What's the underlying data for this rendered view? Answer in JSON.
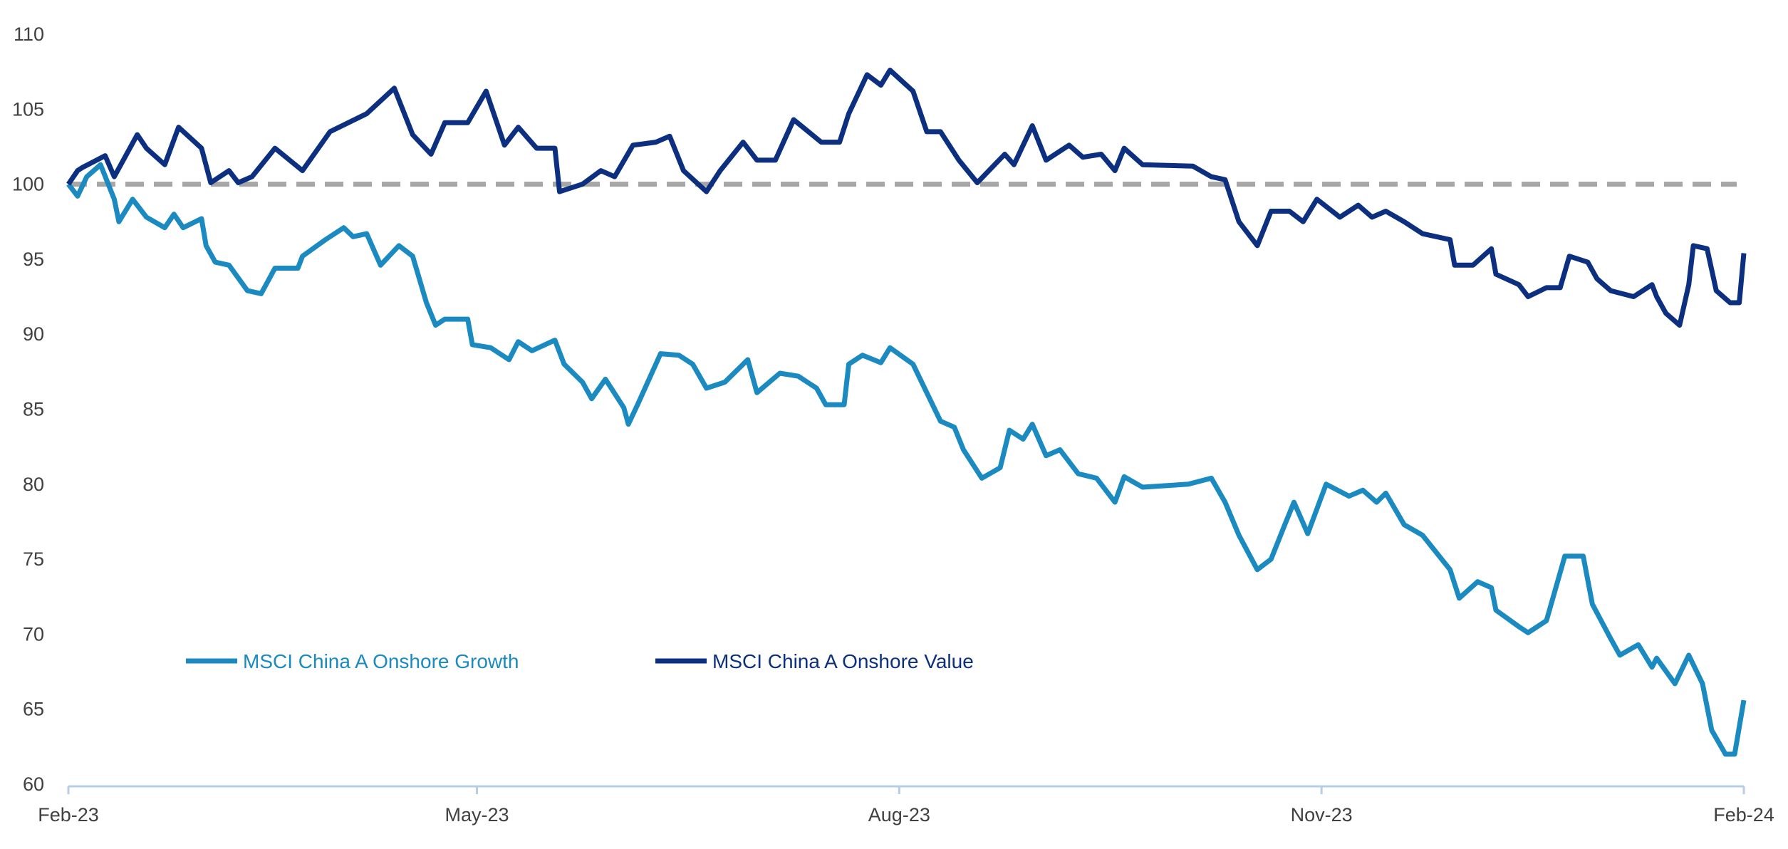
{
  "chart_data": {
    "type": "line",
    "title": "",
    "xlabel": "",
    "ylabel": "",
    "ylim": [
      60,
      110
    ],
    "xlim": [
      "2023-02-01",
      "2024-02-01"
    ],
    "yticks": [
      "60",
      "65",
      "70",
      "75",
      "80",
      "85",
      "90",
      "95",
      "100",
      "105",
      "110"
    ],
    "xticks": [
      {
        "date": "2023-02-01",
        "label": "Feb-23"
      },
      {
        "date": "2023-05-01",
        "label": "May-23"
      },
      {
        "date": "2023-08-01",
        "label": "Aug-23"
      },
      {
        "date": "2023-11-01",
        "label": "Nov-23"
      },
      {
        "date": "2024-02-01",
        "label": "Feb-24"
      }
    ],
    "grid": false,
    "legend_placement": "bottom-left",
    "reference_line": {
      "y": 100,
      "style": "dashed",
      "color": "#a6a6a6"
    },
    "series": [
      {
        "name": "MSCI China A Onshore Growth",
        "color": "#1a8ac0",
        "points": [
          [
            "2023-02-01",
            100.0
          ],
          [
            "2023-02-03",
            99.2
          ],
          [
            "2023-02-05",
            100.5
          ],
          [
            "2023-02-08",
            101.3
          ],
          [
            "2023-02-11",
            99.0
          ],
          [
            "2023-02-12",
            97.5
          ],
          [
            "2023-02-15",
            99.0
          ],
          [
            "2023-02-18",
            97.8
          ],
          [
            "2023-02-22",
            97.1
          ],
          [
            "2023-02-24",
            98.0
          ],
          [
            "2023-02-26",
            97.1
          ],
          [
            "2023-03-02",
            97.7
          ],
          [
            "2023-03-03",
            95.9
          ],
          [
            "2023-03-05",
            94.8
          ],
          [
            "2023-03-08",
            94.6
          ],
          [
            "2023-03-12",
            92.9
          ],
          [
            "2023-03-15",
            92.7
          ],
          [
            "2023-03-18",
            94.4
          ],
          [
            "2023-03-23",
            94.4
          ],
          [
            "2023-03-24",
            95.2
          ],
          [
            "2023-03-29",
            96.3
          ],
          [
            "2023-04-02",
            97.1
          ],
          [
            "2023-04-04",
            96.5
          ],
          [
            "2023-04-07",
            96.7
          ],
          [
            "2023-04-10",
            94.6
          ],
          [
            "2023-04-14",
            95.9
          ],
          [
            "2023-04-17",
            95.2
          ],
          [
            "2023-04-20",
            92.1
          ],
          [
            "2023-04-22",
            90.6
          ],
          [
            "2023-04-24",
            91.0
          ],
          [
            "2023-04-29",
            91.0
          ],
          [
            "2023-04-30",
            89.3
          ],
          [
            "2023-05-04",
            89.1
          ],
          [
            "2023-05-08",
            88.3
          ],
          [
            "2023-05-10",
            89.5
          ],
          [
            "2023-05-13",
            88.9
          ],
          [
            "2023-05-18",
            89.6
          ],
          [
            "2023-05-20",
            88.0
          ],
          [
            "2023-05-24",
            86.8
          ],
          [
            "2023-05-26",
            85.7
          ],
          [
            "2023-05-29",
            87.0
          ],
          [
            "2023-06-02",
            85.1
          ],
          [
            "2023-06-03",
            84.0
          ],
          [
            "2023-06-05",
            85.3
          ],
          [
            "2023-06-10",
            88.7
          ],
          [
            "2023-06-14",
            88.6
          ],
          [
            "2023-06-17",
            88.0
          ],
          [
            "2023-06-20",
            86.4
          ],
          [
            "2023-06-24",
            86.8
          ],
          [
            "2023-06-29",
            88.3
          ],
          [
            "2023-07-01",
            86.1
          ],
          [
            "2023-07-06",
            87.4
          ],
          [
            "2023-07-10",
            87.2
          ],
          [
            "2023-07-14",
            86.4
          ],
          [
            "2023-07-16",
            85.3
          ],
          [
            "2023-07-20",
            85.3
          ],
          [
            "2023-07-21",
            88.0
          ],
          [
            "2023-07-24",
            88.6
          ],
          [
            "2023-07-28",
            88.1
          ],
          [
            "2023-07-30",
            89.1
          ],
          [
            "2023-08-04",
            88.0
          ],
          [
            "2023-08-07",
            86.1
          ],
          [
            "2023-08-10",
            84.2
          ],
          [
            "2023-08-13",
            83.8
          ],
          [
            "2023-08-15",
            82.3
          ],
          [
            "2023-08-19",
            80.4
          ],
          [
            "2023-08-23",
            81.1
          ],
          [
            "2023-08-25",
            83.6
          ],
          [
            "2023-08-28",
            83.0
          ],
          [
            "2023-08-30",
            84.0
          ],
          [
            "2023-09-02",
            81.9
          ],
          [
            "2023-09-05",
            82.3
          ],
          [
            "2023-09-09",
            80.7
          ],
          [
            "2023-09-13",
            80.4
          ],
          [
            "2023-09-17",
            78.8
          ],
          [
            "2023-09-19",
            80.5
          ],
          [
            "2023-09-23",
            79.8
          ],
          [
            "2023-10-03",
            80.0
          ],
          [
            "2023-10-08",
            80.4
          ],
          [
            "2023-10-11",
            78.8
          ],
          [
            "2023-10-14",
            76.6
          ],
          [
            "2023-10-18",
            74.3
          ],
          [
            "2023-10-21",
            75.0
          ],
          [
            "2023-10-24",
            77.3
          ],
          [
            "2023-10-26",
            78.8
          ],
          [
            "2023-10-29",
            76.7
          ],
          [
            "2023-11-02",
            80.0
          ],
          [
            "2023-11-07",
            79.2
          ],
          [
            "2023-11-10",
            79.6
          ],
          [
            "2023-11-13",
            78.8
          ],
          [
            "2023-11-15",
            79.4
          ],
          [
            "2023-11-19",
            77.3
          ],
          [
            "2023-11-23",
            76.6
          ],
          [
            "2023-11-29",
            74.3
          ],
          [
            "2023-12-01",
            72.4
          ],
          [
            "2023-12-05",
            73.5
          ],
          [
            "2023-12-08",
            73.1
          ],
          [
            "2023-12-09",
            71.6
          ],
          [
            "2023-12-14",
            70.5
          ],
          [
            "2023-12-16",
            70.1
          ],
          [
            "2023-12-20",
            70.9
          ],
          [
            "2023-12-24",
            75.2
          ],
          [
            "2023-12-28",
            75.2
          ],
          [
            "2023-12-30",
            72.0
          ],
          [
            "2024-01-03",
            69.7
          ],
          [
            "2024-01-05",
            68.6
          ],
          [
            "2024-01-09",
            69.3
          ],
          [
            "2024-01-12",
            67.8
          ],
          [
            "2024-01-13",
            68.4
          ],
          [
            "2024-01-17",
            66.7
          ],
          [
            "2024-01-20",
            68.6
          ],
          [
            "2024-01-23",
            66.7
          ],
          [
            "2024-01-25",
            63.6
          ],
          [
            "2024-01-28",
            62.0
          ],
          [
            "2024-01-30",
            62.0
          ],
          [
            "2024-02-01",
            65.6
          ]
        ]
      },
      {
        "name": "MSCI China A Onshore Value",
        "color": "#0c2f7f",
        "points": [
          [
            "2023-02-01",
            100.0
          ],
          [
            "2023-02-03",
            100.9
          ],
          [
            "2023-02-04",
            101.1
          ],
          [
            "2023-02-09",
            101.9
          ],
          [
            "2023-02-11",
            100.5
          ],
          [
            "2023-02-16",
            103.3
          ],
          [
            "2023-02-18",
            102.4
          ],
          [
            "2023-02-22",
            101.3
          ],
          [
            "2023-02-25",
            103.8
          ],
          [
            "2023-03-02",
            102.4
          ],
          [
            "2023-03-04",
            100.1
          ],
          [
            "2023-03-08",
            100.9
          ],
          [
            "2023-03-10",
            100.1
          ],
          [
            "2023-03-13",
            100.5
          ],
          [
            "2023-03-18",
            102.4
          ],
          [
            "2023-03-24",
            100.9
          ],
          [
            "2023-03-30",
            103.5
          ],
          [
            "2023-04-07",
            104.7
          ],
          [
            "2023-04-13",
            106.4
          ],
          [
            "2023-04-17",
            103.3
          ],
          [
            "2023-04-21",
            102.0
          ],
          [
            "2023-04-24",
            104.1
          ],
          [
            "2023-04-29",
            104.1
          ],
          [
            "2023-05-03",
            106.2
          ],
          [
            "2023-05-07",
            102.6
          ],
          [
            "2023-05-10",
            103.8
          ],
          [
            "2023-05-14",
            102.4
          ],
          [
            "2023-05-18",
            102.4
          ],
          [
            "2023-05-19",
            99.5
          ],
          [
            "2023-05-24",
            100.0
          ],
          [
            "2023-05-28",
            100.9
          ],
          [
            "2023-05-31",
            100.5
          ],
          [
            "2023-06-04",
            102.6
          ],
          [
            "2023-06-09",
            102.8
          ],
          [
            "2023-06-12",
            103.2
          ],
          [
            "2023-06-15",
            100.9
          ],
          [
            "2023-06-20",
            99.5
          ],
          [
            "2023-06-23",
            100.9
          ],
          [
            "2023-06-28",
            102.8
          ],
          [
            "2023-07-01",
            101.6
          ],
          [
            "2023-07-05",
            101.6
          ],
          [
            "2023-07-09",
            104.3
          ],
          [
            "2023-07-15",
            102.8
          ],
          [
            "2023-07-19",
            102.8
          ],
          [
            "2023-07-21",
            104.7
          ],
          [
            "2023-07-25",
            107.3
          ],
          [
            "2023-07-28",
            106.6
          ],
          [
            "2023-07-30",
            107.6
          ],
          [
            "2023-08-04",
            106.2
          ],
          [
            "2023-08-07",
            103.5
          ],
          [
            "2023-08-10",
            103.5
          ],
          [
            "2023-08-14",
            101.6
          ],
          [
            "2023-08-18",
            100.1
          ],
          [
            "2023-08-24",
            102.0
          ],
          [
            "2023-08-26",
            101.3
          ],
          [
            "2023-08-30",
            103.9
          ],
          [
            "2023-09-02",
            101.6
          ],
          [
            "2023-09-07",
            102.6
          ],
          [
            "2023-09-10",
            101.8
          ],
          [
            "2023-09-14",
            102.0
          ],
          [
            "2023-09-17",
            100.9
          ],
          [
            "2023-09-19",
            102.4
          ],
          [
            "2023-09-23",
            101.3
          ],
          [
            "2023-10-04",
            101.2
          ],
          [
            "2023-10-08",
            100.5
          ],
          [
            "2023-10-11",
            100.3
          ],
          [
            "2023-10-14",
            97.5
          ],
          [
            "2023-10-18",
            95.9
          ],
          [
            "2023-10-21",
            98.2
          ],
          [
            "2023-10-25",
            98.2
          ],
          [
            "2023-10-28",
            97.5
          ],
          [
            "2023-10-31",
            99.0
          ],
          [
            "2023-11-05",
            97.8
          ],
          [
            "2023-11-09",
            98.6
          ],
          [
            "2023-11-12",
            97.8
          ],
          [
            "2023-11-15",
            98.2
          ],
          [
            "2023-11-19",
            97.5
          ],
          [
            "2023-11-23",
            96.7
          ],
          [
            "2023-11-29",
            96.3
          ],
          [
            "2023-11-30",
            94.6
          ],
          [
            "2023-12-04",
            94.6
          ],
          [
            "2023-12-08",
            95.7
          ],
          [
            "2023-12-09",
            94.0
          ],
          [
            "2023-12-14",
            93.3
          ],
          [
            "2023-12-16",
            92.5
          ],
          [
            "2023-12-20",
            93.1
          ],
          [
            "2023-12-23",
            93.1
          ],
          [
            "2023-12-25",
            95.2
          ],
          [
            "2023-12-29",
            94.8
          ],
          [
            "2023-12-31",
            93.7
          ],
          [
            "2024-01-03",
            92.9
          ],
          [
            "2024-01-08",
            92.5
          ],
          [
            "2024-01-12",
            93.3
          ],
          [
            "2024-01-13",
            92.5
          ],
          [
            "2024-01-15",
            91.4
          ],
          [
            "2024-01-18",
            90.6
          ],
          [
            "2024-01-20",
            93.3
          ],
          [
            "2024-01-21",
            95.9
          ],
          [
            "2024-01-24",
            95.7
          ],
          [
            "2024-01-26",
            92.9
          ],
          [
            "2024-01-29",
            92.1
          ],
          [
            "2024-01-31",
            92.1
          ],
          [
            "2024-02-01",
            95.4
          ]
        ]
      }
    ]
  }
}
